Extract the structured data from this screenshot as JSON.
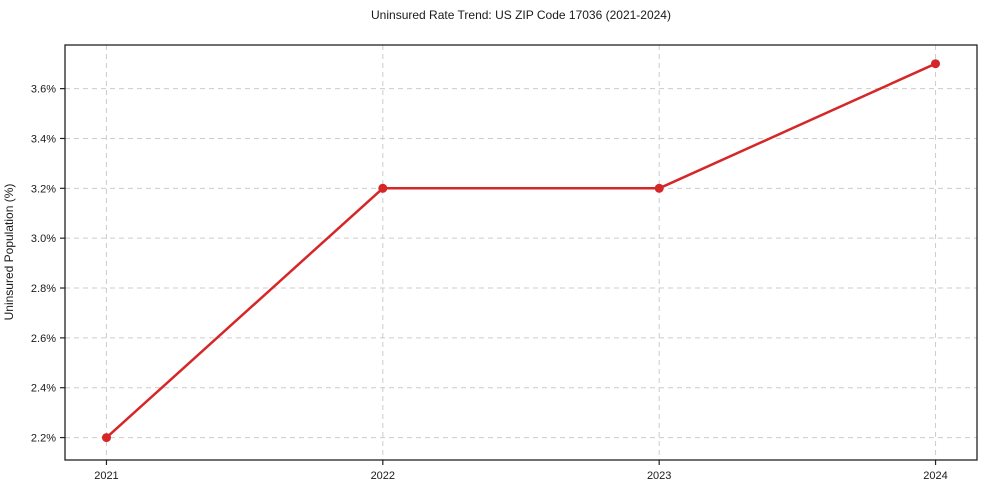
{
  "chart_data": {
    "type": "line",
    "title": "Uninsured Rate Trend: US ZIP Code 17036 (2021-2024)",
    "xlabel": "",
    "ylabel": "Uninsured Population (%)",
    "x": [
      2021,
      2022,
      2023,
      2024
    ],
    "series": [
      {
        "name": "Uninsured rate",
        "values": [
          2.2,
          3.2,
          3.2,
          3.7
        ],
        "color": "#d62728"
      }
    ],
    "xticks": [
      2021,
      2022,
      2023,
      2024
    ],
    "xtick_labels": [
      "2021",
      "2022",
      "2023",
      "2024"
    ],
    "yticks": [
      2.2,
      2.4,
      2.6,
      2.8,
      3.0,
      3.2,
      3.4,
      3.6
    ],
    "ytick_labels": [
      "2.2%",
      "2.4%",
      "2.6%",
      "2.8%",
      "3.0%",
      "3.2%",
      "3.4%",
      "3.6%"
    ],
    "xlim": [
      2020.85,
      2024.15
    ],
    "ylim": [
      2.11,
      3.775
    ],
    "grid": true,
    "grid_style": "dashed",
    "legend": false
  },
  "colors": {
    "line": "#d62728",
    "marker": "#d62728",
    "grid": "#cccccc",
    "spine": "#222222",
    "text": "#1a1a1a",
    "background": "#ffffff"
  }
}
